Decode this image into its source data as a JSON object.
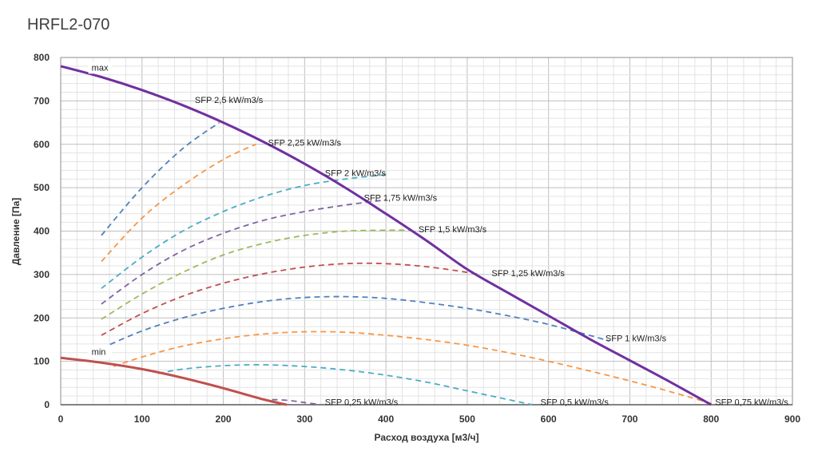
{
  "chart_data": {
    "type": "line",
    "title": "HRFL2-070",
    "xlabel": "Расход воздуха [м3/ч]",
    "ylabel": "Давление [Па]",
    "xlim": [
      0,
      900
    ],
    "ylim": [
      0,
      800
    ],
    "xticks": [
      "0",
      "100",
      "200",
      "300",
      "400",
      "500",
      "600",
      "700",
      "800",
      "900"
    ],
    "yticks": [
      "0",
      "100",
      "200",
      "300",
      "400",
      "500",
      "600",
      "700",
      "800"
    ],
    "grid": true,
    "legend": "none",
    "colors": {
      "max": "#7030a0",
      "min": "#c0504d",
      "sfp_2_5": "#4f81bd",
      "sfp_2_25": "#f79646",
      "sfp_2": "#4bacc6",
      "sfp_1_75": "#8064a2",
      "sfp_1_5": "#9bbb59",
      "sfp_1_25": "#c0504d",
      "sfp_1": "#4f81bd",
      "sfp_0_75": "#f79646",
      "sfp_0_5": "#4bacc6",
      "sfp_0_25": "#8064a2"
    },
    "series": [
      {
        "key": "max",
        "name": "max",
        "style": "solid",
        "x": [
          0,
          50,
          100,
          150,
          200,
          250,
          300,
          350,
          400,
          450,
          500,
          550,
          600,
          650,
          700,
          750,
          800
        ],
        "y": [
          780,
          755,
          725,
          690,
          650,
          605,
          555,
          500,
          440,
          378,
          312,
          258,
          205,
          152,
          102,
          52,
          0
        ]
      },
      {
        "key": "min",
        "name": "min",
        "style": "solid",
        "x": [
          0,
          50,
          100,
          150,
          200,
          250,
          278
        ],
        "y": [
          108,
          97,
          82,
          62,
          38,
          12,
          0
        ]
      },
      {
        "key": "sfp_2_5",
        "name": "SFP 2,5 kW/m3/s",
        "style": "dashed",
        "x": [
          50,
          100,
          150,
          195
        ],
        "y": [
          390,
          500,
          590,
          650
        ]
      },
      {
        "key": "sfp_2_25",
        "name": "SFP 2,25 kW/m3/s",
        "style": "dashed",
        "x": [
          50,
          100,
          150,
          200,
          240
        ],
        "y": [
          330,
          430,
          505,
          565,
          600
        ]
      },
      {
        "key": "sfp_2",
        "name": "SFP 2 kW/m3/s",
        "style": "dashed",
        "x": [
          50,
          100,
          150,
          200,
          250,
          300,
          350,
          400
        ],
        "y": [
          268,
          340,
          400,
          445,
          480,
          505,
          520,
          530
        ]
      },
      {
        "key": "sfp_1_75",
        "name": "SFP 1,75 kW/m3/s",
        "style": "dashed",
        "x": [
          50,
          100,
          150,
          200,
          250,
          300,
          350,
          400
        ],
        "y": [
          232,
          300,
          355,
          395,
          425,
          445,
          460,
          472
        ]
      },
      {
        "key": "sfp_1_5",
        "name": "SFP 1,5 kW/m3/s",
        "style": "dashed",
        "x": [
          50,
          100,
          150,
          200,
          250,
          300,
          350,
          400,
          430
        ],
        "y": [
          197,
          255,
          305,
          345,
          372,
          390,
          400,
          402,
          402
        ]
      },
      {
        "key": "sfp_1_25",
        "name": "SFP 1,25 kW/m3/s",
        "style": "dashed",
        "x": [
          50,
          100,
          150,
          200,
          250,
          300,
          350,
          400,
          450,
          500,
          515
        ],
        "y": [
          160,
          210,
          250,
          280,
          302,
          317,
          325,
          325,
          318,
          305,
          300
        ]
      },
      {
        "key": "sfp_1",
        "name": "SFP 1 kW/m3/s",
        "style": "dashed",
        "x": [
          50,
          100,
          150,
          200,
          250,
          300,
          350,
          400,
          450,
          500,
          550,
          600,
          650,
          675
        ],
        "y": [
          130,
          170,
          200,
          222,
          238,
          247,
          249,
          245,
          235,
          222,
          205,
          185,
          160,
          147
        ]
      },
      {
        "key": "sfp_0_75",
        "name": "SFP 0,75 kW/m3/s",
        "style": "dashed",
        "x": [
          65,
          100,
          150,
          200,
          250,
          300,
          350,
          400,
          450,
          500,
          550,
          600,
          650,
          700,
          750,
          800
        ],
        "y": [
          88,
          110,
          135,
          152,
          163,
          168,
          167,
          160,
          150,
          137,
          120,
          100,
          78,
          55,
          30,
          3
        ]
      },
      {
        "key": "sfp_0_5",
        "name": "SFP 0,5 kW/m3/s",
        "style": "dashed",
        "x": [
          120,
          150,
          200,
          250,
          300,
          350,
          400,
          450,
          500,
          550,
          580
        ],
        "y": [
          72,
          82,
          90,
          92,
          88,
          80,
          68,
          52,
          32,
          12,
          0
        ]
      },
      {
        "key": "sfp_0_25",
        "name": "SFP 0,25 kW/m3/s",
        "style": "dashed",
        "x": [
          260,
          280,
          300,
          320
        ],
        "y": [
          12,
          10,
          5,
          0
        ]
      }
    ],
    "annotations": [
      {
        "text": "max",
        "x": 38,
        "y": 770
      },
      {
        "text": "min",
        "x": 38,
        "y": 115
      },
      {
        "text": "SFP 2,5 kW/m3/s",
        "x": 165,
        "y": 695
      },
      {
        "text": "SFP 2,25 kW/m3/s",
        "x": 255,
        "y": 597
      },
      {
        "text": "SFP 2 kW/m3/s",
        "x": 325,
        "y": 527
      },
      {
        "text": "SFP 1,75 kW/m3/s",
        "x": 373,
        "y": 470
      },
      {
        "text": "SFP 1,5 kW/m3/s",
        "x": 440,
        "y": 397
      },
      {
        "text": "SFP 1,25 kW/m3/s",
        "x": 530,
        "y": 296
      },
      {
        "text": "SFP 1 kW/m3/s",
        "x": 670,
        "y": 146
      },
      {
        "text": "SFP 0,75 kW/m3/s",
        "x": 805,
        "y": -1
      },
      {
        "text": "SFP 0,5 kW/m3/s",
        "x": 590,
        "y": -1
      },
      {
        "text": "SFP 0,25 kW/m3/s",
        "x": 325,
        "y": -1
      }
    ]
  }
}
